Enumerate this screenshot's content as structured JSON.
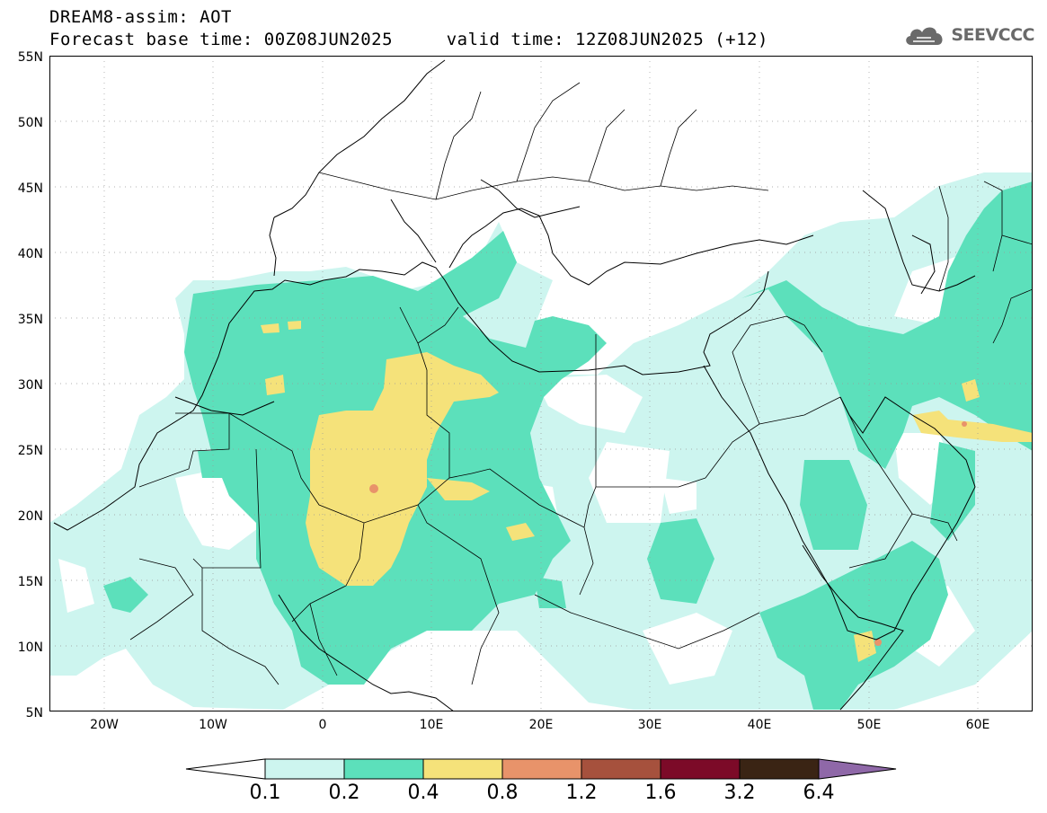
{
  "header": {
    "line1": "DREAM8-assim: AOT",
    "line2": "Forecast base time: 00Z08JUN2025     valid time: 12Z08JUN2025 (+12)"
  },
  "logo": {
    "text": "SEEVCCC",
    "icon": "cloud-icon"
  },
  "map": {
    "variable": "AOT",
    "lat_range": [
      5,
      55
    ],
    "lon_range": [
      -25,
      65
    ],
    "lat_labels": [
      "55N",
      "50N",
      "45N",
      "40N",
      "35N",
      "30N",
      "25N",
      "20N",
      "15N",
      "10N",
      "5N"
    ],
    "lon_labels": [
      "20W",
      "10W",
      "0",
      "10E",
      "20E",
      "30E",
      "40E",
      "50E",
      "60E"
    ]
  },
  "colorbar": {
    "labels": [
      "0.1",
      "0.2",
      "0.4",
      "0.8",
      "1.2",
      "1.6",
      "3.2",
      "6.4"
    ],
    "colors": [
      "#cdf5ef",
      "#5ce0bb",
      "#f5e27a",
      "#e8936a",
      "#a6513d",
      "#7c0a28",
      "#3a2414",
      "#8f68a8"
    ]
  }
}
